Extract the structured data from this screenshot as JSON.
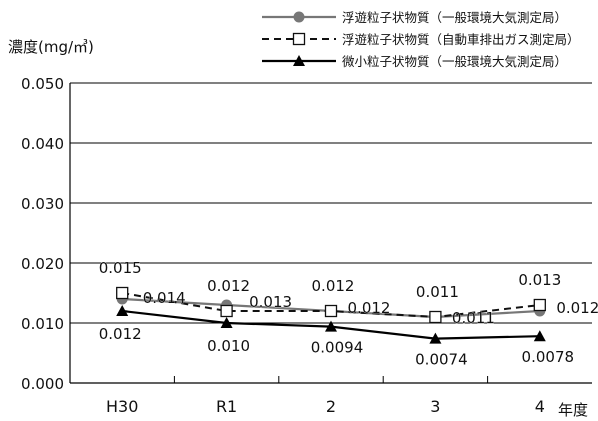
{
  "chart_data": {
    "type": "line",
    "categories": [
      "H30",
      "R1",
      "2",
      "3",
      "4"
    ],
    "ylabel": "濃度(mg/㎥)",
    "xlabel": "年度",
    "ylim": [
      0.0,
      0.05
    ],
    "yticks": [
      "0.000",
      "0.010",
      "0.020",
      "0.030",
      "0.040",
      "0.050"
    ],
    "grid": true,
    "legend_position": "top-right",
    "series": [
      {
        "name": "浮遊粒子状物質（一般環境大気測定局）",
        "marker": "circle",
        "dash": "solid",
        "color": "#777777",
        "values": [
          0.014,
          0.013,
          0.012,
          0.011,
          0.012
        ],
        "labels": [
          "0.014",
          "0.013",
          "0.012",
          "0.011",
          "0.012"
        ]
      },
      {
        "name": "浮遊粒子状物質（自動車排出ガス測定局）",
        "marker": "square",
        "dash": "dashed",
        "color": "#111111",
        "values": [
          0.015,
          0.012,
          0.012,
          0.011,
          0.013
        ],
        "labels": [
          "0.015",
          "0.012",
          "0.012",
          "0.011",
          "0.013"
        ]
      },
      {
        "name": "微小粒子状物質（一般環境大気測定局）",
        "marker": "triangle",
        "dash": "solid",
        "color": "#000000",
        "values": [
          0.012,
          0.01,
          0.0094,
          0.0074,
          0.0078
        ],
        "labels": [
          "0.012",
          "0.010",
          "0.0094",
          "0.0074",
          "0.0078"
        ]
      }
    ]
  }
}
